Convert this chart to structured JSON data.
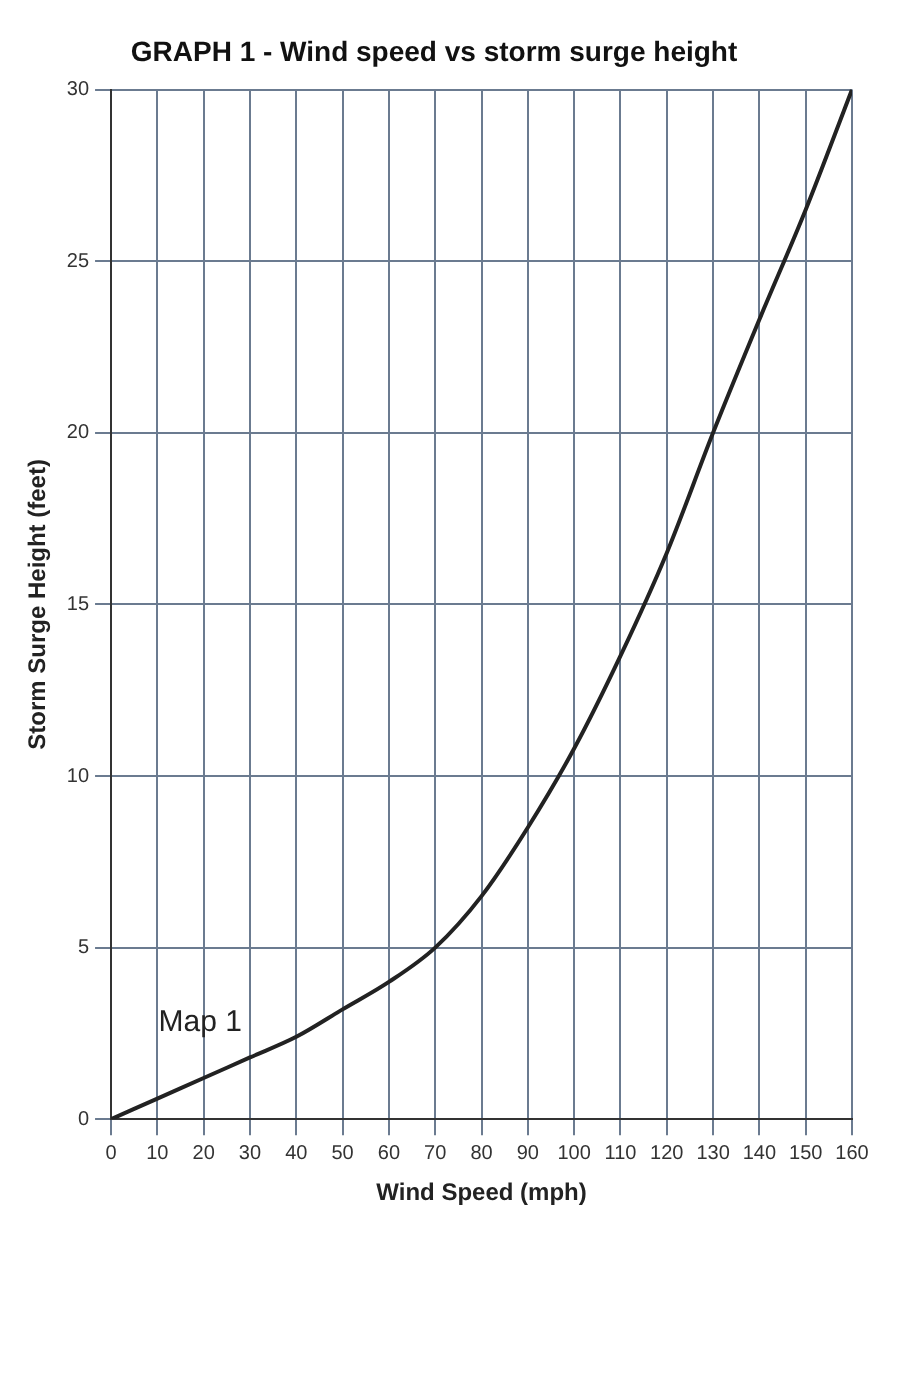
{
  "chart_data": {
    "type": "line",
    "title": "GRAPH 1 - Wind speed vs storm surge height",
    "xlabel": "Wind Speed (mph)",
    "ylabel": "Storm Surge Height (feet)",
    "x": [
      0,
      10,
      20,
      30,
      40,
      50,
      60,
      70,
      80,
      90,
      100,
      110,
      120,
      130,
      140,
      150,
      160
    ],
    "series": [
      {
        "color": "#222222",
        "values": [
          0,
          0.6,
          1.2,
          1.8,
          2.4,
          3.2,
          4.0,
          5.0,
          6.5,
          8.5,
          10.8,
          13.5,
          16.5,
          20,
          23.3,
          26.5,
          30
        ]
      }
    ],
    "xlim": [
      0,
      160
    ],
    "xticks": [
      0,
      10,
      20,
      30,
      40,
      50,
      60,
      70,
      80,
      90,
      100,
      110,
      120,
      130,
      140,
      150,
      160
    ],
    "ylim": [
      0,
      30
    ],
    "yticks": [
      0,
      5,
      10,
      15,
      20,
      25,
      30
    ],
    "annotations": [
      {
        "text": "Map 1",
        "x": 30,
        "y": 1.8
      }
    ],
    "grid": true,
    "legend": false,
    "marker": "none",
    "line_style": "solid"
  }
}
